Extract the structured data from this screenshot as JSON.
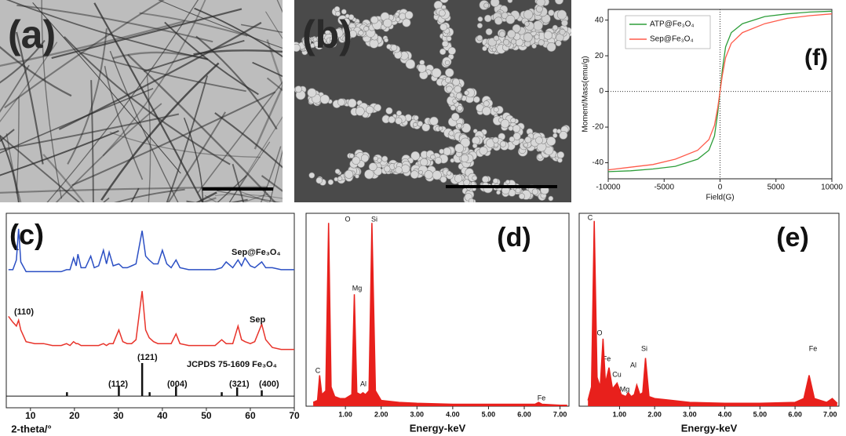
{
  "images": [
    {
      "label": "(a)"
    },
    {
      "label": "(b)"
    }
  ],
  "chart_data": [
    {
      "type": "line",
      "label": "(f)",
      "x_label": "Field(G)",
      "y_label": "Moment/Mass(emu/g)",
      "legend": "upper left",
      "xlim": [
        -10000,
        10000
      ],
      "ylim": [
        -49,
        46
      ],
      "xticks": [
        -10000,
        -5000,
        0,
        5000,
        10000
      ],
      "yticks": [
        -40,
        -20,
        0,
        20,
        40
      ],
      "x": [
        -10000,
        -8000,
        -6000,
        -4000,
        -2000,
        -1000,
        -500,
        -200,
        0,
        200,
        500,
        1000,
        2000,
        4000,
        6000,
        8000,
        10000
      ],
      "series": [
        {
          "name": "ATP@Fe₃O₄",
          "color": "#2e9e3a",
          "values": [
            -45,
            -44.5,
            -43.5,
            -42,
            -38,
            -33,
            -25,
            -12,
            0,
            12,
            25,
            33,
            38,
            42,
            43.5,
            44.5,
            45
          ]
        },
        {
          "name": "Sep@Fe₃O₄",
          "color": "#ff5a4a",
          "values": [
            -44,
            -42.5,
            -41,
            -38,
            -33,
            -27,
            -19,
            -9,
            0,
            9,
            19,
            27,
            33,
            38,
            41,
            42.5,
            43.5
          ]
        }
      ]
    },
    {
      "type": "line",
      "label": "(c)",
      "x_label": "2-theta/°",
      "xlim": [
        4.5,
        70
      ],
      "ylim": [
        -6,
        94
      ],
      "xticks": [
        10,
        20,
        30,
        40,
        50,
        60,
        70
      ],
      "x": [
        5,
        6,
        6.8,
        7.3,
        7.8,
        9,
        11,
        13,
        15,
        17,
        18.2,
        19,
        19.8,
        20.4,
        20.8,
        21.5,
        22.5,
        23.7,
        24.5,
        25.5,
        26.6,
        27.3,
        27.9,
        28.8,
        30.1,
        31,
        32,
        33,
        34,
        35.4,
        36.2,
        37,
        38,
        39,
        40,
        41,
        42,
        43.1,
        44,
        46,
        48,
        50,
        52,
        53.5,
        54.5,
        56,
        57.2,
        58,
        58.8,
        60,
        61,
        62.6,
        63.5,
        65,
        67,
        69,
        70
      ],
      "series": [
        {
          "name": "Sep@Fe₃O₄",
          "color": "#2b4fc4",
          "values": [
            65,
            65,
            70,
            86,
            69,
            64,
            64,
            64,
            64,
            64,
            65,
            65,
            71,
            67,
            73,
            66,
            66,
            72,
            66,
            67,
            75,
            68,
            74,
            67,
            68,
            66,
            66,
            67,
            68,
            85,
            72,
            70,
            68,
            68,
            75,
            68,
            66,
            70,
            66,
            65,
            65,
            65,
            65,
            66,
            69,
            66,
            70,
            67,
            71,
            67,
            66,
            69,
            66,
            66,
            65,
            65,
            65
          ]
        },
        {
          "name": "Sep",
          "color": "#e8332a",
          "values": [
            41,
            38,
            36,
            39,
            34,
            28,
            27,
            27,
            26,
            26,
            27,
            26,
            28,
            27,
            27,
            26,
            26,
            26,
            26,
            26,
            27,
            26,
            27,
            27,
            34,
            28,
            27,
            27,
            29,
            54,
            34,
            30,
            28,
            27,
            27,
            27,
            27,
            32,
            27,
            26,
            26,
            26,
            26,
            29,
            27,
            27,
            36,
            29,
            28,
            27,
            28,
            37,
            29,
            25,
            24,
            24,
            24
          ]
        },
        {
          "name": "JCPDS 75-1609 Fe₃O₄",
          "color": "#111111",
          "type": "stem",
          "x": [
            18.3,
            30.1,
            35.4,
            37.1,
            43.1,
            53.5,
            57,
            62.6
          ],
          "values": [
            2,
            5,
            17,
            2,
            5,
            2,
            4.5,
            3
          ]
        }
      ],
      "annotations": [
        "(110)",
        "(121)",
        "(112)",
        "(004)",
        "(321)",
        "(400)"
      ]
    },
    {
      "type": "area",
      "label": "(d)",
      "x_label": "Energy-keV",
      "color": "#e8201c",
      "xlim": [
        -0.1,
        7.25
      ],
      "ylim": [
        0,
        100
      ],
      "xticks": [
        {
          "value": 1,
          "label": "1.00"
        },
        {
          "value": 2,
          "label": "2.00"
        },
        {
          "value": 3,
          "label": "3.00"
        },
        {
          "value": 4,
          "label": "4.00"
        },
        {
          "value": 5,
          "label": "5.00"
        },
        {
          "value": 6,
          "label": "6.00"
        },
        {
          "value": 7,
          "label": "7.00"
        }
      ],
      "x": [
        0.1,
        0.22,
        0.28,
        0.34,
        0.45,
        0.53,
        0.6,
        0.7,
        0.85,
        1.0,
        1.18,
        1.25,
        1.32,
        1.42,
        1.49,
        1.56,
        1.66,
        1.74,
        1.84,
        2.0,
        2.5,
        3,
        4,
        5,
        6,
        6.3,
        6.4,
        6.5,
        7,
        7.2
      ],
      "values": [
        2,
        3,
        16,
        6,
        8,
        95,
        10,
        5,
        4,
        4,
        6,
        58,
        7,
        6,
        7,
        6,
        8,
        95,
        8,
        3,
        2,
        1.5,
        1,
        1,
        1,
        1,
        2,
        1,
        0.5,
        0.5
      ],
      "annotations": [
        "C",
        "O",
        "Mg",
        "Al",
        "Si",
        "Fe"
      ]
    },
    {
      "type": "area",
      "label": "(e)",
      "x_label": "Energy-keV",
      "color": "#e8201c",
      "xlim": [
        -0.15,
        7.25
      ],
      "ylim": [
        0,
        100
      ],
      "xticks": [
        {
          "value": 1,
          "label": "1.00"
        },
        {
          "value": 2,
          "label": "2.00"
        },
        {
          "value": 3,
          "label": "3.00"
        },
        {
          "value": 4,
          "label": "4.00"
        },
        {
          "value": 5,
          "label": "5.00"
        },
        {
          "value": 6,
          "label": "6.00"
        },
        {
          "value": 7,
          "label": "7.00"
        }
      ],
      "x": [
        0.1,
        0.2,
        0.28,
        0.36,
        0.45,
        0.53,
        0.6,
        0.7,
        0.8,
        0.93,
        1.05,
        1.18,
        1.25,
        1.33,
        1.42,
        1.49,
        1.58,
        1.66,
        1.74,
        1.84,
        2.0,
        2.5,
        3,
        4,
        5,
        6,
        6.25,
        6.4,
        6.55,
        6.9,
        7.06,
        7.2
      ],
      "values": [
        3,
        10,
        96,
        15,
        10,
        35,
        12,
        20,
        9,
        12,
        6,
        5,
        7,
        5,
        6,
        11,
        6,
        7,
        25,
        5,
        4,
        3,
        2,
        1.5,
        1.5,
        2,
        4,
        16,
        4,
        2,
        4,
        1.5
      ],
      "annotations": [
        "C",
        "O",
        "Fe",
        "Cu",
        "Al",
        "Mg",
        "Si",
        "Fe"
      ]
    }
  ]
}
